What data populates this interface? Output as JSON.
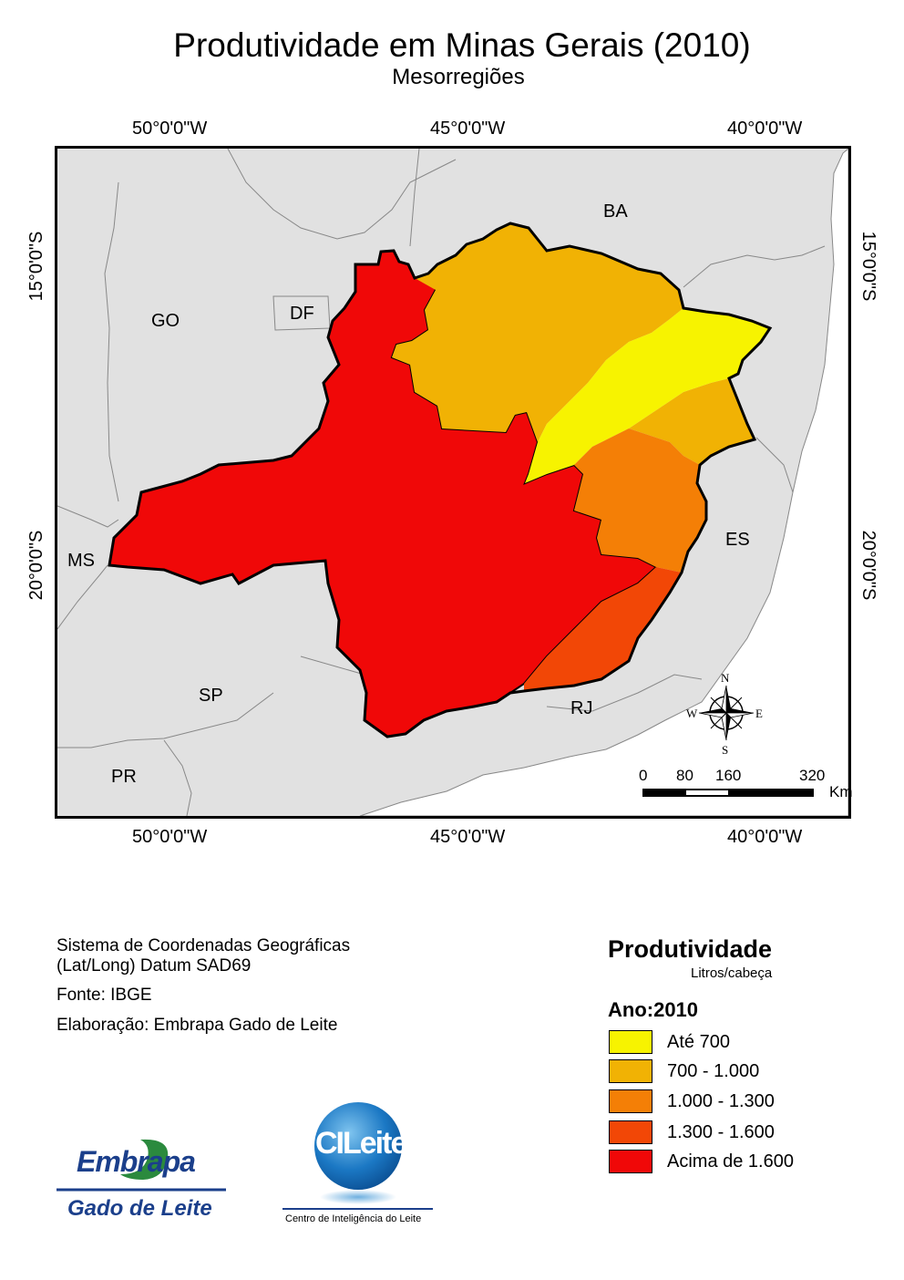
{
  "title": "Produtividade em Minas Gerais (2010)",
  "subtitle": "Mesorregiões",
  "grid": {
    "lon_top": [
      "50°0'0\"W",
      "45°0'0\"W",
      "40°0'0\"W"
    ],
    "lon_bottom": [
      "50°0'0\"W",
      "45°0'0\"W",
      "40°0'0\"W"
    ],
    "lat_left": [
      "15°0'0\"S",
      "20°0'0\"S"
    ],
    "lat_right": [
      "15°0'0\"S",
      "20°0'0\"S"
    ]
  },
  "state_labels": {
    "ba": "BA",
    "go": "GO",
    "df": "DF",
    "ms": "MS",
    "es": "ES",
    "sp": "SP",
    "rj": "RJ",
    "pr": "PR"
  },
  "compass": {
    "n": "N",
    "s": "S",
    "e": "E",
    "w": "W"
  },
  "scale_bar": {
    "ticks": [
      "0",
      "80",
      "160",
      "320"
    ],
    "unit": "Km"
  },
  "info": {
    "line1": "Sistema de Coordenadas Geográficas",
    "line2": "(Lat/Long) Datum SAD69",
    "line3": "Fonte: IBGE",
    "line4": "Elaboração: Embrapa Gado de Leite"
  },
  "legend": {
    "title": "Produtividade",
    "unit": "Litros/cabeça",
    "year": "Ano:2010",
    "classes": [
      {
        "label": "Até 700",
        "color": "#f7f300"
      },
      {
        "label": "700 - 1.000",
        "color": "#f1b204"
      },
      {
        "label": "1.000 - 1.300",
        "color": "#f47f06"
      },
      {
        "label": "1.300 - 1.600",
        "color": "#f24706"
      },
      {
        "label": "Acima de 1.600",
        "color": "#f00808"
      }
    ]
  },
  "logos": {
    "embrapa_name": "Embrapa",
    "embrapa_unit": "Gado de Leite",
    "cileite_name": "CILeite",
    "cileite_caption": "Centro de Inteligência do Leite"
  },
  "colors": {
    "background_states": "#e1e1e1",
    "ocean": "#ffffff",
    "embrapa_blue": "#1b3f8b",
    "embrapa_green": "#2b8a3e"
  }
}
